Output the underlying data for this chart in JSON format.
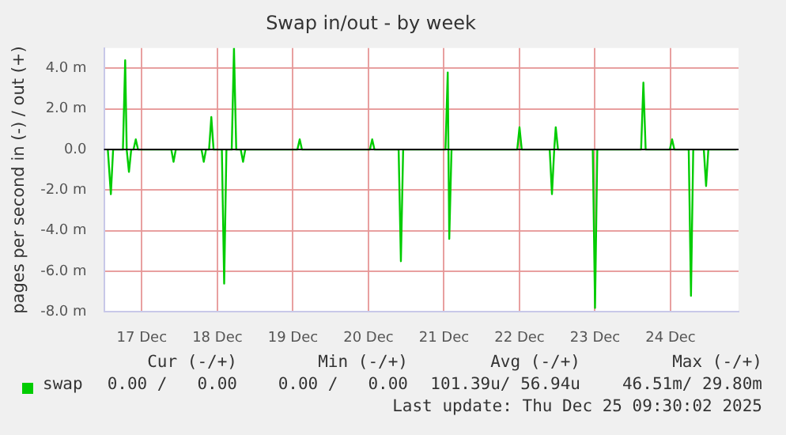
{
  "chart_data": {
    "type": "line",
    "title": "Swap in/out - by week",
    "ylabel": "pages per second in (-) / out (+)",
    "x": [
      "--12-16T13:12",
      "--12-16T14:10",
      "--12-16T14:53",
      "--12-16T18:00",
      "--12-16T18:43",
      "--12-16T19:12",
      "--12-16T19:55",
      "--12-16T20:38",
      "--12-16T21:22",
      "--12-16T22:05",
      "--12-16T22:48",
      "--12-17T09:22",
      "--12-17T10:05",
      "--12-17T10:48",
      "--12-17T18:58",
      "--12-17T19:41",
      "--12-17T20:24",
      "--12-17T21:22",
      "--12-17T22:05",
      "--12-17T22:48",
      "--12-18T01:26",
      "--12-18T02:10",
      "--12-18T02:53",
      "--12-18T04:34",
      "--12-18T05:17",
      "--12-18T06:00",
      "--12-18T07:26",
      "--12-18T08:10",
      "--12-18T08:53",
      "--12-19T01:26",
      "--12-19T02:10",
      "--12-19T02:53",
      "--12-20T00:29",
      "--12-20T01:12",
      "--12-20T01:55",
      "--12-20T09:36",
      "--12-20T10:19",
      "--12-20T11:02",
      "--12-21T00:29",
      "--12-21T01:12",
      "--12-21T01:41",
      "--12-21T02:24",
      "--12-21T23:17",
      "--12-22T00:00",
      "--12-22T00:43",
      "--12-22T09:36",
      "--12-22T10:19",
      "--12-22T11:02",
      "--12-22T11:31",
      "--12-22T12:14",
      "--12-22T23:17",
      "--12-23T00:00",
      "--12-23T00:43",
      "--12-23T14:38",
      "--12-23T15:22",
      "--12-23T16:05",
      "--12-23T23:46",
      "--12-24T00:29",
      "--12-24T01:12",
      "--12-24T05:46",
      "--12-24T06:29",
      "--12-24T07:12",
      "--12-24T10:34",
      "--12-24T11:17",
      "--12-24T12:00",
      "--12-24T20:53"
    ],
    "series": [
      {
        "name": "swap",
        "color": "#00cc00",
        "values": [
          0,
          -2.2,
          0,
          0,
          4.4,
          0,
          -1.1,
          0,
          0,
          0.5,
          0,
          0,
          -0.6,
          0,
          0,
          -0.6,
          0,
          0,
          1.6,
          0,
          0,
          -6.6,
          0,
          0,
          5.0,
          0,
          0,
          -0.6,
          0,
          0,
          0.5,
          0,
          0,
          0.5,
          0,
          0,
          -5.5,
          0,
          0,
          3.8,
          -4.4,
          0,
          0,
          1.1,
          0,
          0,
          -2.2,
          0,
          1.1,
          0,
          0,
          -7.8,
          0,
          0,
          3.3,
          0,
          0,
          0.5,
          0,
          0,
          -7.2,
          0,
          0,
          -1.8,
          0,
          0
        ]
      }
    ],
    "xlim": [
      "--12-16T12:00",
      "--12-24T21:36"
    ],
    "xticks": [
      {
        "value": "--12-17",
        "label": "17 Dec"
      },
      {
        "value": "--12-18",
        "label": "18 Dec"
      },
      {
        "value": "--12-19",
        "label": "19 Dec"
      },
      {
        "value": "--12-20",
        "label": "20 Dec"
      },
      {
        "value": "--12-21",
        "label": "21 Dec"
      },
      {
        "value": "--12-22",
        "label": "22 Dec"
      },
      {
        "value": "--12-23",
        "label": "23 Dec"
      },
      {
        "value": "--12-24",
        "label": "24 Dec"
      }
    ],
    "ylim": [
      -8,
      5
    ],
    "yticks": [
      {
        "value": -8,
        "label": "-8.0 m"
      },
      {
        "value": -6,
        "label": "-6.0 m"
      },
      {
        "value": -4,
        "label": "-4.0 m"
      },
      {
        "value": -2,
        "label": "-2.0 m"
      },
      {
        "value": 0,
        "label": "0.0"
      },
      {
        "value": 2,
        "label": "2.0 m"
      },
      {
        "value": 4,
        "label": "4.0 m"
      }
    ],
    "ref_lines": [
      {
        "axis": "y",
        "value": 0,
        "color": "#000000",
        "line_style": "solid"
      }
    ],
    "grid": true,
    "legend": "bottom",
    "marker": "none",
    "line_style": "solid",
    "annotations": [
      "Cur (-/+)",
      "Min (-/+)",
      "Avg (-/+)",
      "Max (-/+)",
      "0.00 /   0.00",
      "0.00 /   0.00",
      "101.39u/ 56.94u",
      "46.51m/ 29.80m",
      "Last update: Thu Dec 25 09:30:02 2025"
    ]
  }
}
